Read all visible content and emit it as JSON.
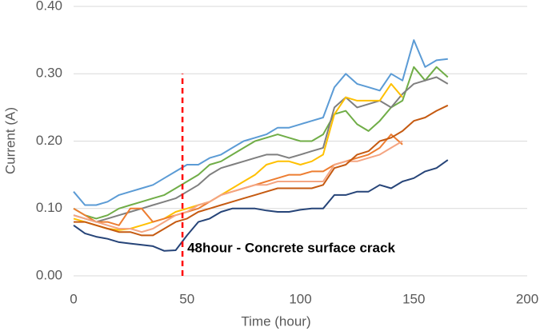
{
  "chart_data": {
    "type": "line",
    "x_label": "Time (hour)",
    "y_label": "Current (A)",
    "x": [
      0,
      5,
      10,
      15,
      20,
      25,
      30,
      35,
      40,
      45,
      50,
      55,
      60,
      65,
      70,
      75,
      80,
      85,
      90,
      95,
      100,
      105,
      110,
      115,
      120,
      125,
      130,
      135,
      140,
      145,
      150,
      155,
      160,
      165
    ],
    "series": [
      {
        "color": "#5b9bd5",
        "values": [
          0.125,
          0.105,
          0.105,
          0.11,
          0.12,
          0.125,
          0.13,
          0.135,
          0.145,
          0.155,
          0.165,
          0.165,
          0.175,
          0.18,
          0.19,
          0.2,
          0.205,
          0.21,
          0.22,
          0.22,
          0.225,
          0.23,
          0.235,
          0.28,
          0.3,
          0.285,
          0.28,
          0.275,
          0.3,
          0.29,
          0.35,
          0.31,
          0.32,
          0.322
        ]
      },
      {
        "color": "#70ad47",
        "values": [
          0.1,
          0.09,
          0.085,
          0.09,
          0.1,
          0.105,
          0.11,
          0.115,
          0.12,
          0.13,
          0.14,
          0.15,
          0.165,
          0.17,
          0.18,
          0.19,
          0.2,
          0.205,
          0.21,
          0.205,
          0.2,
          0.2,
          0.21,
          0.24,
          0.245,
          0.225,
          0.215,
          0.23,
          0.25,
          0.26,
          0.31,
          0.29,
          0.31,
          0.295
        ]
      },
      {
        "color": "#7f7f7f",
        "values": [
          0.09,
          0.085,
          0.08,
          0.085,
          0.09,
          0.095,
          0.1,
          0.105,
          0.11,
          0.115,
          0.125,
          0.135,
          0.15,
          0.16,
          0.165,
          0.17,
          0.175,
          0.18,
          0.18,
          0.175,
          0.18,
          0.185,
          0.19,
          0.25,
          0.265,
          0.25,
          0.255,
          0.26,
          0.25,
          0.27,
          0.285,
          0.29,
          0.295,
          0.285
        ]
      },
      {
        "color": "#ffc000",
        "values": [
          0.085,
          0.08,
          0.075,
          0.07,
          0.068,
          0.07,
          0.075,
          0.08,
          0.085,
          0.095,
          0.1,
          0.105,
          0.11,
          0.12,
          0.13,
          0.14,
          0.15,
          0.165,
          0.17,
          0.17,
          0.165,
          0.17,
          0.18,
          0.24,
          0.265,
          0.26,
          0.26,
          0.26,
          0.285,
          0.265,
          null,
          null,
          null,
          null
        ]
      },
      {
        "color": "#ed7d31",
        "values": [
          0.1,
          0.09,
          0.08,
          0.08,
          0.075,
          0.1,
          0.1,
          0.08,
          0.085,
          0.09,
          0.095,
          0.1,
          0.11,
          0.12,
          0.125,
          0.13,
          0.135,
          0.14,
          0.145,
          0.15,
          0.15,
          0.155,
          0.155,
          0.165,
          0.17,
          0.175,
          0.18,
          0.19,
          0.21,
          0.195,
          null,
          null,
          null,
          null
        ]
      },
      {
        "color": "#f4a582",
        "values": [
          0.09,
          0.085,
          0.08,
          0.075,
          0.07,
          0.07,
          0.065,
          0.07,
          0.08,
          0.09,
          0.095,
          0.105,
          0.11,
          0.12,
          0.125,
          0.13,
          0.135,
          0.135,
          0.14,
          0.14,
          0.14,
          0.14,
          0.14,
          0.165,
          0.17,
          0.17,
          0.175,
          0.18,
          0.19,
          0.2,
          null,
          null,
          null,
          null
        ]
      },
      {
        "color": "#c55a11",
        "values": [
          0.08,
          0.08,
          0.075,
          0.07,
          0.065,
          0.065,
          0.06,
          0.06,
          0.07,
          0.08,
          0.085,
          0.095,
          0.1,
          0.105,
          0.11,
          0.115,
          0.12,
          0.125,
          0.13,
          0.13,
          0.13,
          0.13,
          0.135,
          0.16,
          0.165,
          0.18,
          0.185,
          0.2,
          0.205,
          0.215,
          0.23,
          0.235,
          0.245,
          0.253
        ]
      },
      {
        "color": "#264478",
        "values": [
          0.075,
          0.063,
          0.058,
          0.055,
          0.05,
          0.048,
          0.046,
          0.044,
          0.037,
          0.038,
          0.06,
          0.08,
          0.085,
          0.095,
          0.1,
          0.1,
          0.1,
          0.097,
          0.095,
          0.095,
          0.098,
          0.1,
          0.1,
          0.12,
          0.12,
          0.125,
          0.125,
          0.135,
          0.13,
          0.14,
          0.145,
          0.155,
          0.16,
          0.172
        ]
      }
    ],
    "xlim": [
      0,
      200
    ],
    "xticks": [
      0,
      50,
      100,
      150,
      200
    ],
    "ylim": [
      0,
      0.4
    ],
    "yticks": [
      {
        "value": 0,
        "label": "0.00"
      },
      {
        "value": 0.1,
        "label": "0.10"
      },
      {
        "value": 0.2,
        "label": "0.20"
      },
      {
        "value": 0.3,
        "label": "0.30"
      },
      {
        "value": 0.4,
        "label": "0.40"
      }
    ],
    "grid": true,
    "annotation": {
      "text": "48hour - Concrete surface crack",
      "x": 48,
      "y": [
        0,
        0.3
      ],
      "color": "#ff0000"
    }
  }
}
